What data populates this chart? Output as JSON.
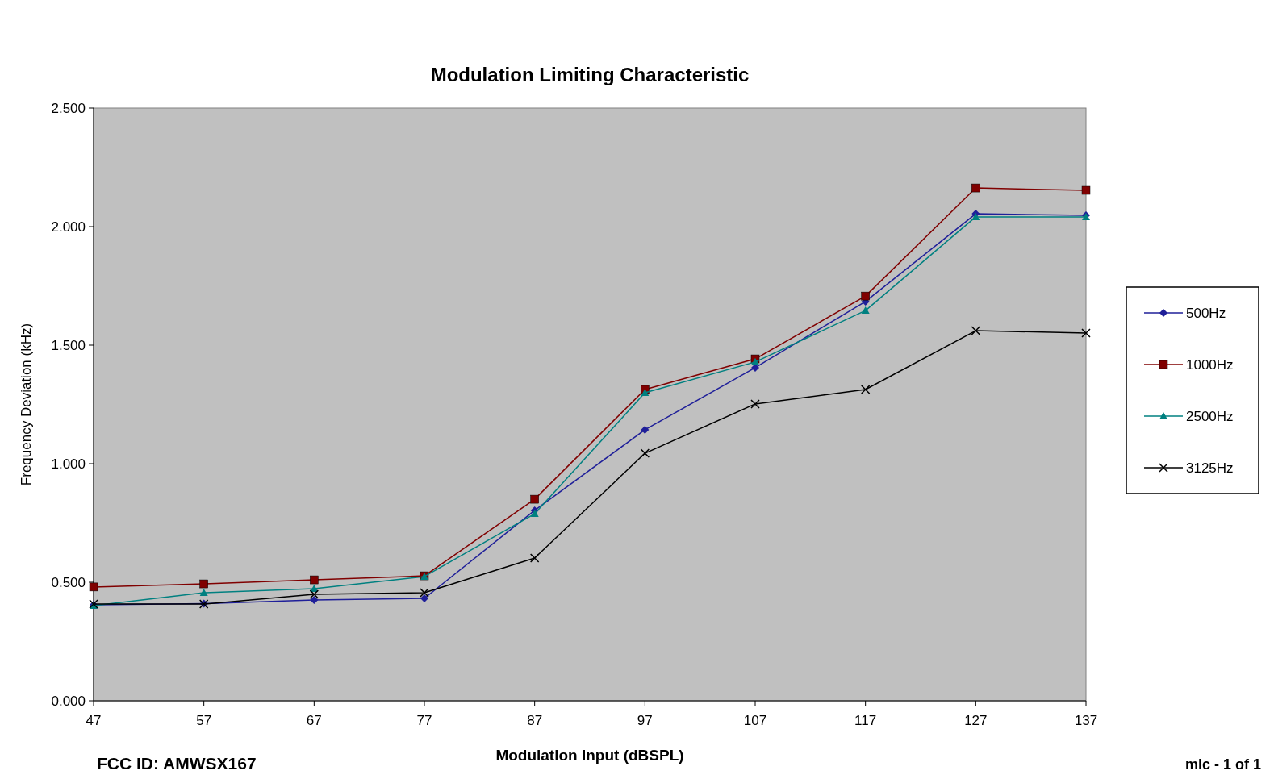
{
  "chart_data": {
    "type": "line",
    "title": "Modulation Limiting Characteristic",
    "xlabel": "Modulation Input (dBSPL)",
    "ylabel": "Frequency Deviation (kHz)",
    "x": [
      47,
      57,
      67,
      77,
      87,
      97,
      107,
      117,
      127,
      137
    ],
    "xlim": [
      47,
      137
    ],
    "xticks": [
      47,
      57,
      67,
      77,
      87,
      97,
      107,
      117,
      127,
      137
    ],
    "ylim": [
      0,
      2.5
    ],
    "yticks": [
      {
        "value": 0,
        "label": "0.000"
      },
      {
        "value": 0.5,
        "label": "0.500"
      },
      {
        "value": 1,
        "label": "1.000"
      },
      {
        "value": 1.5,
        "label": "1.500"
      },
      {
        "value": 2,
        "label": "2.000"
      },
      {
        "value": 2.5,
        "label": "2.500"
      }
    ],
    "series": [
      {
        "name": "500Hz",
        "color": "#1f1f99",
        "marker": "diamond",
        "values": [
          0.405,
          0.41,
          0.425,
          0.432,
          0.803,
          1.143,
          1.405,
          1.684,
          2.054,
          2.048
        ]
      },
      {
        "name": "1000Hz",
        "color": "#800000",
        "marker": "square",
        "values": [
          0.48,
          0.493,
          0.51,
          0.527,
          0.85,
          1.313,
          1.442,
          1.707,
          2.163,
          2.153
        ]
      },
      {
        "name": "2500Hz",
        "color": "#008080",
        "marker": "triangle",
        "values": [
          0.401,
          0.456,
          0.473,
          0.524,
          0.789,
          1.299,
          1.429,
          1.646,
          2.041,
          2.041
        ]
      },
      {
        "name": "3125Hz",
        "color": "#000000",
        "marker": "cross",
        "values": [
          0.408,
          0.408,
          0.449,
          0.456,
          0.602,
          1.044,
          1.252,
          1.313,
          1.561,
          1.551
        ]
      }
    ],
    "legend": "right",
    "grid": false,
    "annotations": [
      "FCC ID: AMWSX167",
      "mlc - 1 of 1"
    ]
  }
}
